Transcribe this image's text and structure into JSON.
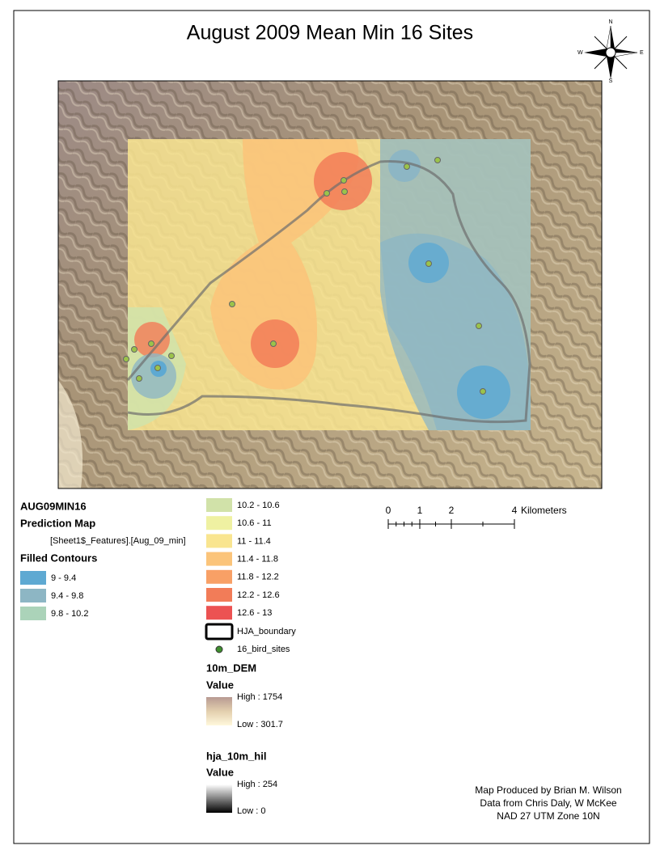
{
  "title": "August 2009 Mean Min 16 Sites",
  "north_arrow": {
    "n": "N",
    "s": "S",
    "e": "E",
    "w": "W"
  },
  "legend": {
    "layer": "AUG09MIN16",
    "prediction": "Prediction Map",
    "field": "[Sheet1$_Features].[Aug_09_min]",
    "contours_heading": "Filled Contours",
    "classes": [
      {
        "label": "9 - 9.4",
        "color": "#5ea9d2"
      },
      {
        "label": "9.4 - 9.8",
        "color": "#8db6c4"
      },
      {
        "label": "9.8 - 10.2",
        "color": "#abd3b9"
      },
      {
        "label": "10.2 - 10.6",
        "color": "#d1e2a9"
      },
      {
        "label": "10.6 - 11",
        "color": "#eff1a2"
      },
      {
        "label": "11 - 11.4",
        "color": "#f9e590"
      },
      {
        "label": "11.4 - 11.8",
        "color": "#fbc47a"
      },
      {
        "label": "11.8 - 12.2",
        "color": "#f8a066"
      },
      {
        "label": "12.2 - 12.6",
        "color": "#f27c58"
      },
      {
        "label": "12.6 - 13",
        "color": "#ec5252"
      }
    ],
    "boundary": "HJA_boundary",
    "sites": "16_bird_sites",
    "dem": {
      "name": "10m_DEM",
      "value": "Value",
      "high": "High : 1754",
      "low": "Low : 301.7"
    },
    "hillshade": {
      "name": "hja_10m_hil",
      "value": "Value",
      "high": "High : 254",
      "low": "Low : 0"
    }
  },
  "scale_bar": {
    "ticks": [
      0,
      1,
      2,
      4
    ],
    "unit": "Kilometers"
  },
  "credits": [
    "Map Produced by Brian M. Wilson",
    "Data from Chris Daly, W McKee",
    "NAD 27 UTM Zone 10N"
  ]
}
